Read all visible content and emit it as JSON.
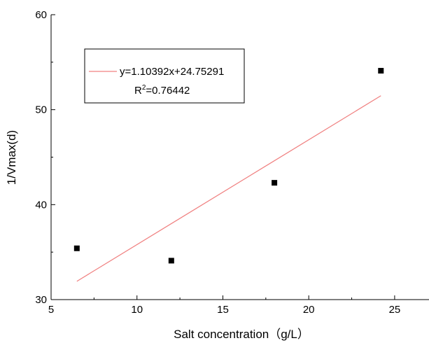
{
  "chart_data": {
    "type": "scatter",
    "title": "",
    "xlabel": "Salt concentration（g/L）",
    "ylabel": "1/Vmax(d)",
    "xlim": [
      5,
      27
    ],
    "ylim": [
      30,
      60
    ],
    "x_ticks": [
      5,
      10,
      15,
      20,
      25
    ],
    "y_ticks": [
      30,
      40,
      50,
      60
    ],
    "grid": false,
    "legend_position": "top-left",
    "series": [
      {
        "values": [
          {
            "x": 6.5,
            "y": 35.4
          },
          {
            "x": 12.0,
            "y": 34.1
          },
          {
            "x": 18.0,
            "y": 42.3
          },
          {
            "x": 24.2,
            "y": 54.1
          }
        ],
        "marker": "square",
        "color": "#000000"
      }
    ],
    "fit": {
      "label": "y=1.10392x+24.75291",
      "r2_base": "R",
      "r2_exp": "2",
      "r2_value": "=0.76442",
      "slope": 1.10392,
      "intercept": 24.75291,
      "x_range": [
        6.5,
        24.2
      ],
      "color": "#f08080"
    }
  }
}
